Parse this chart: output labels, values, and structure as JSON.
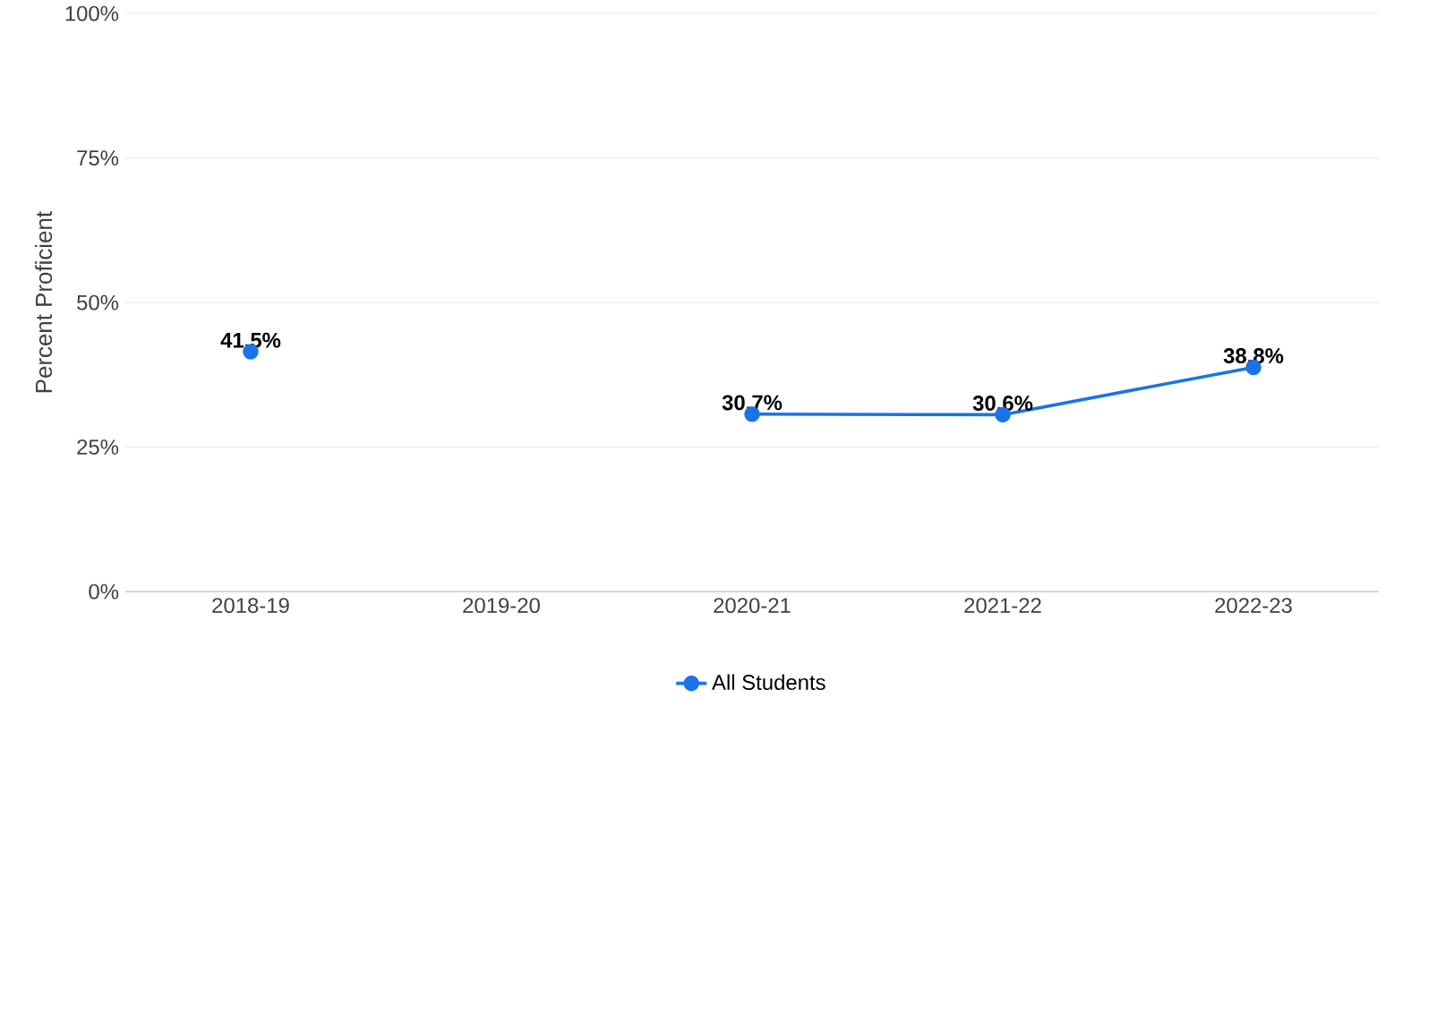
{
  "chart_data": {
    "type": "line",
    "ylabel": "Percent Proficient",
    "categories": [
      "2018-19",
      "2019-20",
      "2020-21",
      "2021-22",
      "2022-23"
    ],
    "series": [
      {
        "name": "All Students",
        "color": "#1a73e8",
        "values": [
          41.5,
          null,
          30.7,
          30.6,
          38.8
        ],
        "value_labels": [
          "41.5%",
          null,
          "30.7%",
          "30.6%",
          "38.8%"
        ]
      }
    ],
    "ylim": [
      0,
      100
    ],
    "yticks": [
      {
        "value": 0,
        "label": "0%"
      },
      {
        "value": 25,
        "label": "25%"
      },
      {
        "value": 50,
        "label": "50%"
      },
      {
        "value": 75,
        "label": "75%"
      },
      {
        "value": 100,
        "label": "100%"
      }
    ],
    "grid": "y",
    "legend": "bottom",
    "marker": "circle",
    "line_style": "solid"
  }
}
